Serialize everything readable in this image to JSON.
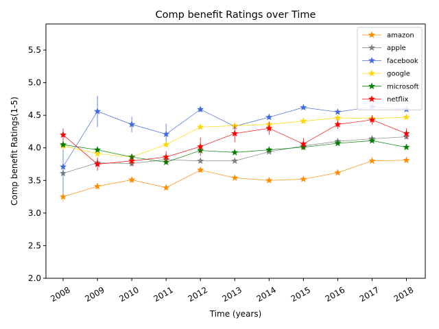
{
  "chart_data": {
    "type": "line",
    "title": "Comp benefit Ratings over Time",
    "xlabel": "Time (years)",
    "ylabel": "Comp benefit Ratings(1-5)",
    "x": [
      2008,
      2009,
      2010,
      2011,
      2012,
      2013,
      2014,
      2015,
      2016,
      2017,
      2018
    ],
    "x_tick_labels": [
      "2008",
      "2009",
      "2010",
      "2011",
      "2012",
      "2013",
      "2014",
      "2015",
      "2016",
      "2017",
      "2018"
    ],
    "xlim": [
      2007.5,
      2018.55
    ],
    "ylim": [
      2.0,
      5.9
    ],
    "y_ticks": [
      "2.0",
      "2.5",
      "3.0",
      "3.5",
      "4.0",
      "4.5",
      "5.0",
      "5.5"
    ],
    "y_tick_values": [
      2.0,
      2.5,
      3.0,
      3.5,
      4.0,
      4.5,
      5.0,
      5.5
    ],
    "grid": false,
    "legend_position": "top-right",
    "marker": "star",
    "series": [
      {
        "name": "amazon",
        "color": "#ff8c00",
        "values": [
          3.25,
          3.41,
          3.51,
          3.39,
          3.66,
          3.54,
          3.5,
          3.52,
          3.62,
          3.8,
          3.81
        ],
        "errors": [
          0.07,
          0.05,
          0.05,
          0.04,
          0.03,
          0.02,
          0.02,
          0.02,
          0.02,
          0.02,
          0.02
        ]
      },
      {
        "name": "apple",
        "color": "#808080",
        "values": [
          3.61,
          3.77,
          3.76,
          3.82,
          3.8,
          3.8,
          3.94,
          4.03,
          4.1,
          4.14,
          4.17
        ],
        "errors": [
          0.05,
          0.04,
          0.04,
          0.03,
          0.03,
          0.02,
          0.02,
          0.02,
          0.02,
          0.02,
          0.02
        ]
      },
      {
        "name": "facebook",
        "color": "#4169e1",
        "values": [
          3.71,
          4.56,
          4.36,
          4.21,
          4.59,
          4.33,
          4.47,
          4.62,
          4.55,
          4.63,
          4.59
        ],
        "errors": [
          0.4,
          0.24,
          0.12,
          0.16,
          0.04,
          0.04,
          0.03,
          0.03,
          0.02,
          0.02,
          0.02
        ]
      },
      {
        "name": "google",
        "color": "#ffd700",
        "values": [
          4.03,
          3.91,
          3.86,
          4.05,
          4.32,
          4.34,
          4.36,
          4.41,
          4.46,
          4.45,
          4.47
        ],
        "errors": [
          0.06,
          0.05,
          0.04,
          0.04,
          0.03,
          0.02,
          0.02,
          0.02,
          0.02,
          0.02,
          0.02
        ]
      },
      {
        "name": "microsoft",
        "color": "#008000",
        "values": [
          4.05,
          3.97,
          3.86,
          3.78,
          3.96,
          3.93,
          3.97,
          4.01,
          4.07,
          4.11,
          4.01
        ],
        "errors": [
          0.04,
          0.03,
          0.03,
          0.03,
          0.02,
          0.02,
          0.02,
          0.04,
          0.02,
          0.02,
          0.02
        ]
      },
      {
        "name": "netflix",
        "color": "#ff0000",
        "values": [
          4.2,
          3.75,
          3.8,
          3.86,
          4.02,
          4.22,
          4.3,
          4.06,
          4.36,
          4.43,
          4.22
        ],
        "errors": [
          0.1,
          0.1,
          0.08,
          0.09,
          0.14,
          0.13,
          0.1,
          0.09,
          0.07,
          0.07,
          0.08
        ]
      }
    ]
  }
}
